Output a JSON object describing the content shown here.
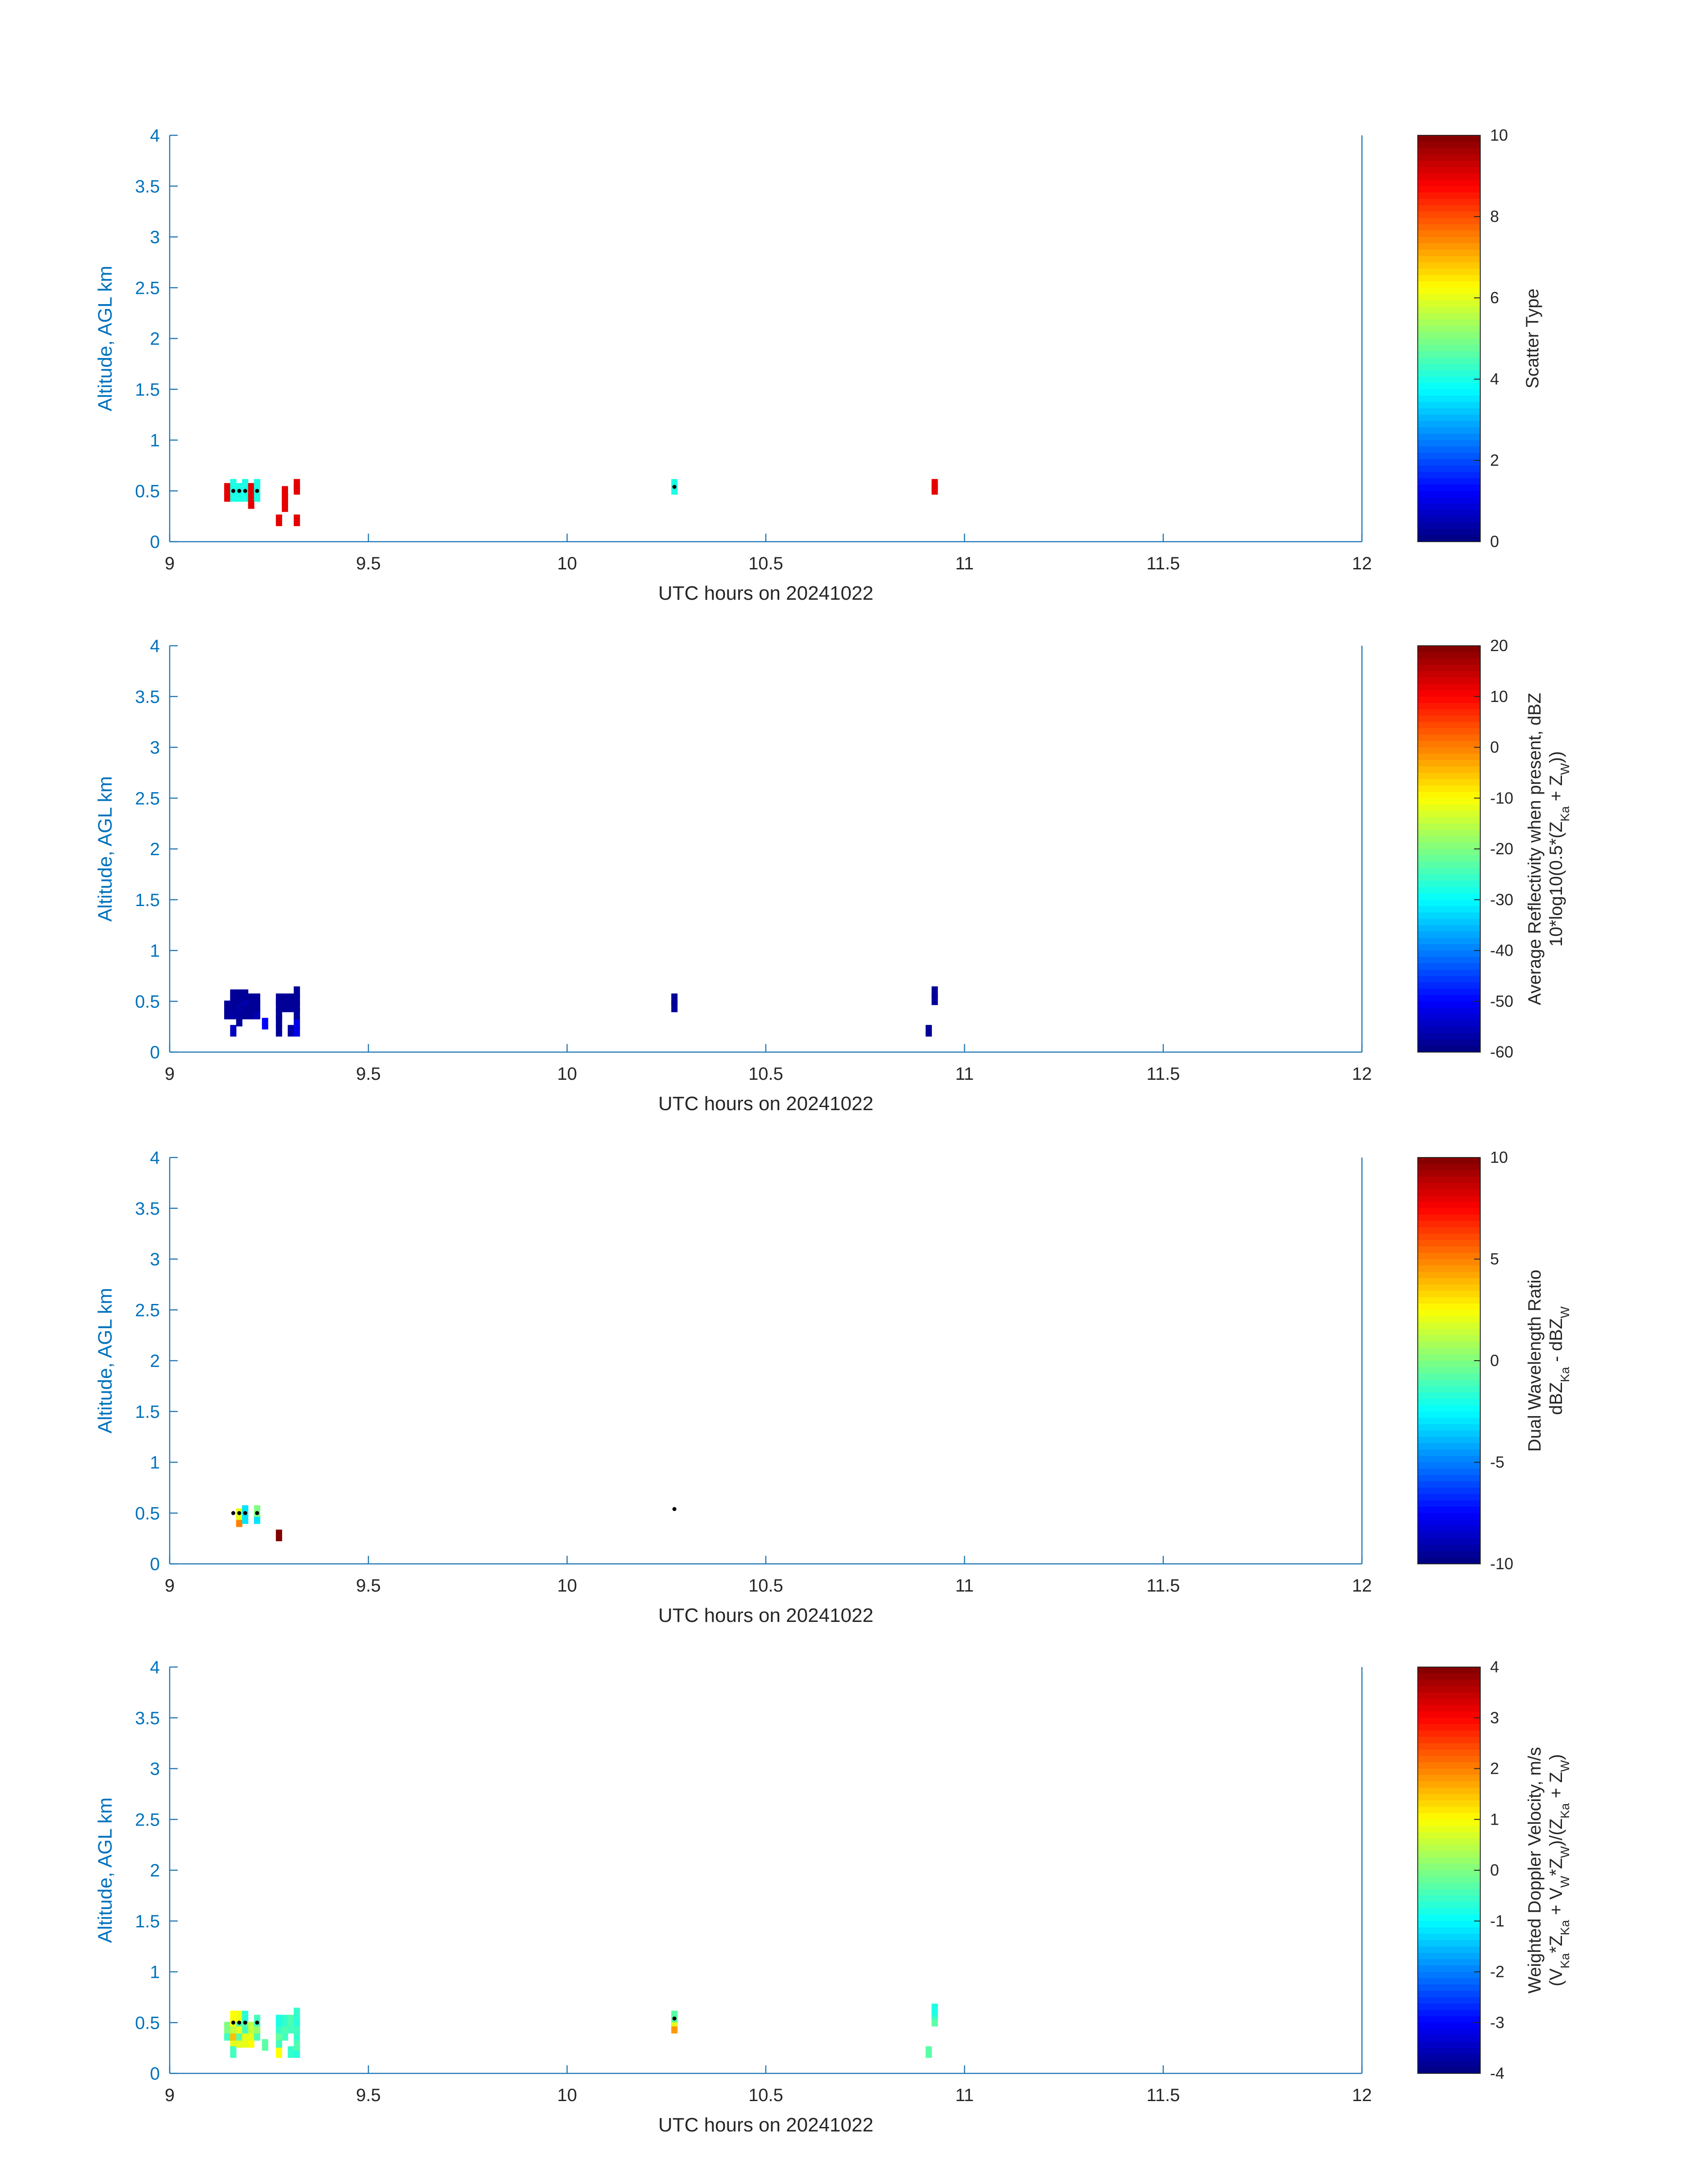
{
  "figure": {
    "colors": {
      "axis": "#1f77b4",
      "axis_text": "#0072bd",
      "text": "#262626",
      "dot": "#000000"
    }
  },
  "chart_data": [
    {
      "type": "heatmap",
      "xlabel": "UTC hours on 20241022",
      "ylabel": "Altitude, AGL km",
      "xlim": [
        9,
        12
      ],
      "ylim": [
        0,
        4
      ],
      "xticks": [
        "9",
        "9.5",
        "10",
        "10.5",
        "11",
        "11.5",
        "12"
      ],
      "yticks": [
        "0",
        "0.5",
        "1",
        "1.5",
        "2",
        "2.5",
        "3",
        "3.5",
        "4"
      ],
      "colorbar": {
        "label_lines": [
          "Scatter Type"
        ],
        "clim": [
          0,
          10
        ],
        "ticks": [
          "0",
          "2",
          "4",
          "6",
          "8",
          "10"
        ],
        "colormap": "jet"
      },
      "cells": [
        {
          "x": 9.145,
          "y": 0.45,
          "v": 9
        },
        {
          "x": 9.145,
          "y": 0.52,
          "v": 9
        },
        {
          "x": 9.16,
          "y": 0.45,
          "v": 4
        },
        {
          "x": 9.16,
          "y": 0.52,
          "v": 4
        },
        {
          "x": 9.16,
          "y": 0.56,
          "v": 4
        },
        {
          "x": 9.175,
          "y": 0.45,
          "v": 4
        },
        {
          "x": 9.175,
          "y": 0.52,
          "v": 4
        },
        {
          "x": 9.19,
          "y": 0.45,
          "v": 4
        },
        {
          "x": 9.19,
          "y": 0.52,
          "v": 4
        },
        {
          "x": 9.19,
          "y": 0.56,
          "v": 4
        },
        {
          "x": 9.205,
          "y": 0.38,
          "v": 9
        },
        {
          "x": 9.205,
          "y": 0.45,
          "v": 9
        },
        {
          "x": 9.205,
          "y": 0.52,
          "v": 9
        },
        {
          "x": 9.22,
          "y": 0.45,
          "v": 4
        },
        {
          "x": 9.22,
          "y": 0.52,
          "v": 4
        },
        {
          "x": 9.22,
          "y": 0.56,
          "v": 4
        },
        {
          "x": 9.275,
          "y": 0.21,
          "v": 9
        },
        {
          "x": 9.29,
          "y": 0.35,
          "v": 9
        },
        {
          "x": 9.29,
          "y": 0.42,
          "v": 9
        },
        {
          "x": 9.29,
          "y": 0.49,
          "v": 9
        },
        {
          "x": 9.32,
          "y": 0.21,
          "v": 9
        },
        {
          "x": 9.32,
          "y": 0.52,
          "v": 9
        },
        {
          "x": 9.32,
          "y": 0.56,
          "v": 9
        },
        {
          "x": 10.27,
          "y": 0.52,
          "v": 4
        },
        {
          "x": 10.27,
          "y": 0.56,
          "v": 4
        },
        {
          "x": 10.925,
          "y": 0.52,
          "v": 9
        },
        {
          "x": 10.925,
          "y": 0.56,
          "v": 9
        }
      ],
      "dots": [
        {
          "x": 9.16,
          "y": 0.5
        },
        {
          "x": 9.175,
          "y": 0.5
        },
        {
          "x": 9.19,
          "y": 0.5
        },
        {
          "x": 9.22,
          "y": 0.5
        },
        {
          "x": 10.27,
          "y": 0.54
        }
      ]
    },
    {
      "type": "heatmap",
      "xlabel": "UTC hours on 20241022",
      "ylabel": "Altitude, AGL km",
      "xlim": [
        9,
        12
      ],
      "ylim": [
        0,
        4
      ],
      "xticks": [
        "9",
        "9.5",
        "10",
        "10.5",
        "11",
        "11.5",
        "12"
      ],
      "yticks": [
        "0",
        "0.5",
        "1",
        "1.5",
        "2",
        "2.5",
        "3",
        "3.5",
        "4"
      ],
      "colorbar": {
        "label_lines": [
          "Average Reflectivity when present, dBZ",
          "10*log10(0.5*(Z_Ka + Z_W))"
        ],
        "clim": [
          -60,
          20
        ],
        "ticks": [
          "-60",
          "-50",
          "-40",
          "-30",
          "-20",
          "-10",
          "0",
          "10",
          "20"
        ],
        "colormap": "jet"
      },
      "cells": [
        {
          "x": 9.145,
          "y": 0.38,
          "v": -58
        },
        {
          "x": 9.145,
          "y": 0.45,
          "v": -58
        },
        {
          "x": 9.16,
          "y": 0.38,
          "v": -57
        },
        {
          "x": 9.16,
          "y": 0.45,
          "v": -58
        },
        {
          "x": 9.16,
          "y": 0.52,
          "v": -58
        },
        {
          "x": 9.16,
          "y": 0.56,
          "v": -58
        },
        {
          "x": 9.16,
          "y": 0.21,
          "v": -55
        },
        {
          "x": 9.175,
          "y": 0.31,
          "v": -58
        },
        {
          "x": 9.175,
          "y": 0.38,
          "v": -58
        },
        {
          "x": 9.175,
          "y": 0.45,
          "v": -57
        },
        {
          "x": 9.175,
          "y": 0.52,
          "v": -58
        },
        {
          "x": 9.175,
          "y": 0.56,
          "v": -58
        },
        {
          "x": 9.19,
          "y": 0.38,
          "v": -58
        },
        {
          "x": 9.19,
          "y": 0.45,
          "v": -58
        },
        {
          "x": 9.19,
          "y": 0.52,
          "v": -56
        },
        {
          "x": 9.19,
          "y": 0.56,
          "v": -58
        },
        {
          "x": 9.205,
          "y": 0.38,
          "v": -58
        },
        {
          "x": 9.205,
          "y": 0.45,
          "v": -58
        },
        {
          "x": 9.205,
          "y": 0.52,
          "v": -58
        },
        {
          "x": 9.22,
          "y": 0.38,
          "v": -56
        },
        {
          "x": 9.22,
          "y": 0.45,
          "v": -58
        },
        {
          "x": 9.22,
          "y": 0.52,
          "v": -58
        },
        {
          "x": 9.24,
          "y": 0.28,
          "v": -50
        },
        {
          "x": 9.275,
          "y": 0.21,
          "v": -58
        },
        {
          "x": 9.275,
          "y": 0.31,
          "v": -58
        },
        {
          "x": 9.275,
          "y": 0.38,
          "v": -58
        },
        {
          "x": 9.275,
          "y": 0.45,
          "v": -58
        },
        {
          "x": 9.275,
          "y": 0.52,
          "v": -58
        },
        {
          "x": 9.29,
          "y": 0.45,
          "v": -58
        },
        {
          "x": 9.29,
          "y": 0.52,
          "v": -58
        },
        {
          "x": 9.305,
          "y": 0.21,
          "v": -57
        },
        {
          "x": 9.305,
          "y": 0.45,
          "v": -58
        },
        {
          "x": 9.305,
          "y": 0.52,
          "v": -58
        },
        {
          "x": 9.32,
          "y": 0.21,
          "v": -52
        },
        {
          "x": 9.32,
          "y": 0.28,
          "v": -52
        },
        {
          "x": 9.32,
          "y": 0.38,
          "v": -58
        },
        {
          "x": 9.32,
          "y": 0.45,
          "v": -58
        },
        {
          "x": 9.32,
          "y": 0.52,
          "v": -58
        },
        {
          "x": 9.32,
          "y": 0.59,
          "v": -58
        },
        {
          "x": 10.27,
          "y": 0.45,
          "v": -58
        },
        {
          "x": 10.27,
          "y": 0.52,
          "v": -58
        },
        {
          "x": 10.91,
          "y": 0.21,
          "v": -58
        },
        {
          "x": 10.925,
          "y": 0.52,
          "v": -58
        },
        {
          "x": 10.925,
          "y": 0.59,
          "v": -58
        }
      ],
      "dots": []
    },
    {
      "type": "heatmap",
      "xlabel": "UTC hours on 20241022",
      "ylabel": "Altitude, AGL km",
      "xlim": [
        9,
        12
      ],
      "ylim": [
        0,
        4
      ],
      "xticks": [
        "9",
        "9.5",
        "10",
        "10.5",
        "11",
        "11.5",
        "12"
      ],
      "yticks": [
        "0",
        "0.5",
        "1",
        "1.5",
        "2",
        "2.5",
        "3",
        "3.5",
        "4"
      ],
      "colorbar": {
        "label_lines": [
          "Dual Wavelength Ratio",
          "dBZ_Ka - dBZ_W"
        ],
        "clim": [
          -10,
          10
        ],
        "ticks": [
          "-10",
          "-5",
          "0",
          "5",
          "10"
        ],
        "colormap": "jet"
      },
      "cells": [
        {
          "x": 9.175,
          "y": 0.42,
          "v": 5
        },
        {
          "x": 9.175,
          "y": 0.49,
          "v": 2
        },
        {
          "x": 9.19,
          "y": 0.45,
          "v": -3
        },
        {
          "x": 9.19,
          "y": 0.52,
          "v": -3
        },
        {
          "x": 9.22,
          "y": 0.45,
          "v": -3
        },
        {
          "x": 9.22,
          "y": 0.52,
          "v": 0
        },
        {
          "x": 9.275,
          "y": 0.28,
          "v": 10
        }
      ],
      "dots": [
        {
          "x": 9.16,
          "y": 0.5
        },
        {
          "x": 9.175,
          "y": 0.5
        },
        {
          "x": 9.19,
          "y": 0.5
        },
        {
          "x": 9.22,
          "y": 0.5
        },
        {
          "x": 10.27,
          "y": 0.54
        }
      ]
    },
    {
      "type": "heatmap",
      "xlabel": "UTC hours on 20241022",
      "ylabel": "Altitude, AGL km",
      "xlim": [
        9,
        12
      ],
      "ylim": [
        0,
        4
      ],
      "xticks": [
        "9",
        "9.5",
        "10",
        "10.5",
        "11",
        "11.5",
        "12"
      ],
      "yticks": [
        "0",
        "0.5",
        "1",
        "1.5",
        "2",
        "2.5",
        "3",
        "3.5",
        "4"
      ],
      "colorbar": {
        "label_lines": [
          "Weighted Doppler Velocity, m/s",
          "(V_Ka*Z_Ka + V_W*Z_W)/(Z_Ka + Z_W)"
        ],
        "clim": [
          -4,
          4
        ],
        "ticks": [
          "-4",
          "-3",
          "-2",
          "-1",
          "0",
          "1",
          "2",
          "3",
          "4"
        ],
        "colormap": "jet"
      },
      "cells": [
        {
          "x": 9.145,
          "y": 0.38,
          "v": -0.5
        },
        {
          "x": 9.145,
          "y": 0.45,
          "v": 0
        },
        {
          "x": 9.16,
          "y": 0.31,
          "v": 0.8
        },
        {
          "x": 9.16,
          "y": 0.38,
          "v": 1.5
        },
        {
          "x": 9.16,
          "y": 0.45,
          "v": 0.5
        },
        {
          "x": 9.16,
          "y": 0.52,
          "v": 1
        },
        {
          "x": 9.16,
          "y": 0.56,
          "v": 1
        },
        {
          "x": 9.16,
          "y": 0.21,
          "v": -0.5
        },
        {
          "x": 9.175,
          "y": 0.31,
          "v": 0.8
        },
        {
          "x": 9.175,
          "y": 0.38,
          "v": -0.3
        },
        {
          "x": 9.175,
          "y": 0.45,
          "v": 0.8
        },
        {
          "x": 9.175,
          "y": 0.52,
          "v": -0.4
        },
        {
          "x": 9.175,
          "y": 0.56,
          "v": 0.9
        },
        {
          "x": 9.19,
          "y": 0.31,
          "v": 0.8
        },
        {
          "x": 9.19,
          "y": 0.38,
          "v": 0.8
        },
        {
          "x": 9.19,
          "y": 0.45,
          "v": -0.5
        },
        {
          "x": 9.19,
          "y": 0.52,
          "v": -0.3
        },
        {
          "x": 9.19,
          "y": 0.56,
          "v": -0.7
        },
        {
          "x": 9.205,
          "y": 0.31,
          "v": 1
        },
        {
          "x": 9.205,
          "y": 0.38,
          "v": 0.8
        },
        {
          "x": 9.205,
          "y": 0.45,
          "v": 0.5
        },
        {
          "x": 9.22,
          "y": 0.38,
          "v": -0.4
        },
        {
          "x": 9.22,
          "y": 0.45,
          "v": 0.2
        },
        {
          "x": 9.22,
          "y": 0.52,
          "v": -0.5
        },
        {
          "x": 9.24,
          "y": 0.28,
          "v": -0.3
        },
        {
          "x": 9.275,
          "y": 0.21,
          "v": 1
        },
        {
          "x": 9.275,
          "y": 0.31,
          "v": -0.5
        },
        {
          "x": 9.275,
          "y": 0.38,
          "v": -0.2
        },
        {
          "x": 9.275,
          "y": 0.45,
          "v": -0.6
        },
        {
          "x": 9.275,
          "y": 0.52,
          "v": -0.8
        },
        {
          "x": 9.29,
          "y": 0.38,
          "v": -0.5
        },
        {
          "x": 9.29,
          "y": 0.45,
          "v": -0.4
        },
        {
          "x": 9.29,
          "y": 0.52,
          "v": -0.6
        },
        {
          "x": 9.305,
          "y": 0.21,
          "v": -0.6
        },
        {
          "x": 9.305,
          "y": 0.45,
          "v": -0.5
        },
        {
          "x": 9.305,
          "y": 0.52,
          "v": -0.4
        },
        {
          "x": 9.32,
          "y": 0.21,
          "v": -0.7
        },
        {
          "x": 9.32,
          "y": 0.28,
          "v": -0.4
        },
        {
          "x": 9.32,
          "y": 0.38,
          "v": -0.6
        },
        {
          "x": 9.32,
          "y": 0.45,
          "v": -0.5
        },
        {
          "x": 9.32,
          "y": 0.52,
          "v": -0.7
        },
        {
          "x": 9.32,
          "y": 0.59,
          "v": -0.6
        },
        {
          "x": 10.27,
          "y": 0.45,
          "v": 1.8
        },
        {
          "x": 10.27,
          "y": 0.52,
          "v": 0.8
        },
        {
          "x": 10.27,
          "y": 0.56,
          "v": -0.3
        },
        {
          "x": 10.91,
          "y": 0.21,
          "v": -0.3
        },
        {
          "x": 10.925,
          "y": 0.52,
          "v": -0.3
        },
        {
          "x": 10.925,
          "y": 0.59,
          "v": -0.6
        },
        {
          "x": 10.925,
          "y": 0.63,
          "v": -0.8
        }
      ],
      "dots": [
        {
          "x": 9.16,
          "y": 0.5
        },
        {
          "x": 9.175,
          "y": 0.5
        },
        {
          "x": 9.19,
          "y": 0.5
        },
        {
          "x": 9.22,
          "y": 0.5
        },
        {
          "x": 10.27,
          "y": 0.54
        }
      ]
    }
  ]
}
